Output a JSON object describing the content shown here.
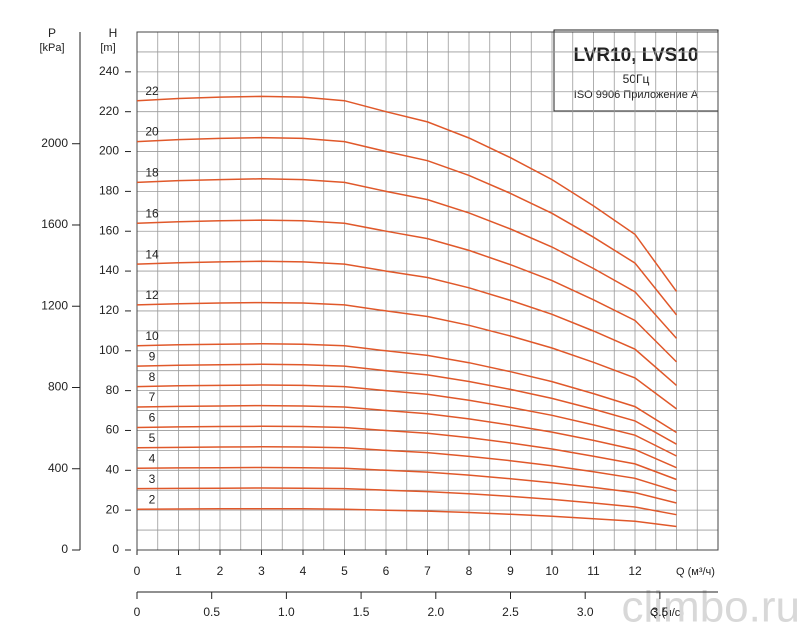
{
  "chart_data": {
    "type": "line",
    "title": "LVR10, LVS10",
    "subtitle": "50Гц",
    "note": "ISO 9906 Приложение A",
    "watermark": "climbo.ru",
    "y_label": "H",
    "y_unit": "[m]",
    "y2_label": "P",
    "y2_unit": "[kPa]",
    "x_label": "Q (м³/ч)",
    "x2_label": "Q (л/с)",
    "x": [
      0,
      1,
      2,
      3,
      4,
      5,
      6,
      7,
      8,
      9,
      10,
      11,
      12,
      13
    ],
    "xlim": [
      0,
      14
    ],
    "xticks": [
      0,
      1,
      2,
      3,
      4,
      5,
      6,
      7,
      8,
      9,
      10,
      11,
      12
    ],
    "xminor": [
      0.5,
      1.5,
      2.5,
      3.5,
      4.5,
      5.5,
      6.5,
      7.5,
      8.5,
      9.5,
      10.5,
      11.5,
      12.5,
      13,
      13.5
    ],
    "ylim": [
      0,
      260
    ],
    "yticks": [
      0,
      20,
      40,
      60,
      80,
      100,
      120,
      140,
      160,
      180,
      200,
      220,
      240
    ],
    "yminor": [
      10,
      30,
      50,
      70,
      90,
      110,
      130,
      150,
      170,
      190,
      210,
      230,
      250
    ],
    "y2lim": [
      0,
      2550
    ],
    "y2ticks": [
      0,
      400,
      800,
      1200,
      1600,
      2000
    ],
    "x2lim": [
      0,
      3.889
    ],
    "x2ticks": [
      0,
      0.5,
      {
        "value": 1,
        "label": "1.0"
      },
      1.5,
      {
        "value": 2,
        "label": "2.0"
      },
      2.5,
      {
        "value": 3,
        "label": "3.0"
      },
      3.5
    ],
    "grid": true,
    "color": "#e0582a",
    "series": [
      {
        "name": "2",
        "values": [
          20.5,
          20.6,
          20.7,
          20.7,
          20.7,
          20.5,
          20.0,
          19.5,
          18.8,
          17.9,
          16.9,
          15.7,
          14.4,
          11.8
        ]
      },
      {
        "name": "3",
        "values": [
          30.8,
          30.9,
          31.0,
          31.1,
          31.0,
          30.8,
          30.0,
          29.3,
          28.2,
          26.9,
          25.4,
          23.6,
          21.6,
          17.7
        ]
      },
      {
        "name": "4",
        "values": [
          41,
          41.2,
          41.3,
          41.4,
          41.3,
          41,
          40,
          39.1,
          37.6,
          35.8,
          33.8,
          31.4,
          28.8,
          23.6
        ]
      },
      {
        "name": "5",
        "values": [
          51.3,
          51.5,
          51.7,
          51.8,
          51.7,
          51.3,
          50,
          48.9,
          47,
          44.8,
          42.3,
          39.3,
          36,
          29.5
        ]
      },
      {
        "name": "6",
        "values": [
          61.5,
          61.8,
          62,
          62.1,
          62,
          61.5,
          60,
          58.6,
          56.4,
          53.7,
          50.7,
          47.1,
          43.2,
          35.4
        ]
      },
      {
        "name": "7",
        "values": [
          71.8,
          72.1,
          72.3,
          72.5,
          72.3,
          71.8,
          70,
          68.4,
          65.8,
          62.7,
          59.2,
          55,
          50.4,
          41.3
        ]
      },
      {
        "name": "8",
        "values": [
          82,
          82.4,
          82.6,
          82.8,
          82.6,
          82,
          80,
          78.2,
          75.2,
          71.6,
          67.6,
          62.8,
          57.6,
          47.2
        ]
      },
      {
        "name": "9",
        "values": [
          92.3,
          92.7,
          93,
          93.2,
          93,
          92.3,
          90,
          87.9,
          84.6,
          80.6,
          76.1,
          70.7,
          64.8,
          53.1
        ]
      },
      {
        "name": "10",
        "values": [
          102.5,
          103,
          103.3,
          103.5,
          103.3,
          102.5,
          100,
          97.7,
          94,
          89.5,
          84.5,
          78.5,
          72,
          59
        ]
      },
      {
        "name": "12",
        "values": [
          123,
          123.6,
          124,
          124.2,
          124,
          123,
          120,
          117.2,
          112.8,
          107.4,
          101.4,
          94.2,
          86.4,
          70.8
        ]
      },
      {
        "name": "14",
        "values": [
          143.5,
          144.2,
          144.6,
          144.9,
          144.6,
          143.5,
          140,
          136.8,
          131.6,
          125.3,
          118.3,
          109.9,
          100.8,
          82.6
        ]
      },
      {
        "name": "16",
        "values": [
          164,
          164.8,
          165.3,
          165.6,
          165.3,
          164,
          160,
          156.3,
          150.4,
          143.2,
          135.2,
          125.6,
          115.2,
          94.4
        ]
      },
      {
        "name": "18",
        "values": [
          184.5,
          185.4,
          185.9,
          186.3,
          185.9,
          184.5,
          180,
          175.9,
          169.2,
          161.1,
          152.1,
          141.3,
          129.6,
          106.2
        ]
      },
      {
        "name": "20",
        "values": [
          205,
          206,
          206.6,
          207,
          206.6,
          205,
          200,
          195.4,
          188,
          179,
          169,
          157,
          144,
          118
        ]
      },
      {
        "name": "22",
        "values": [
          225.5,
          226.6,
          227.3,
          227.7,
          227.3,
          225.5,
          220,
          214.9,
          206.8,
          196.9,
          185.9,
          172.7,
          158.4,
          129.8
        ]
      }
    ]
  }
}
